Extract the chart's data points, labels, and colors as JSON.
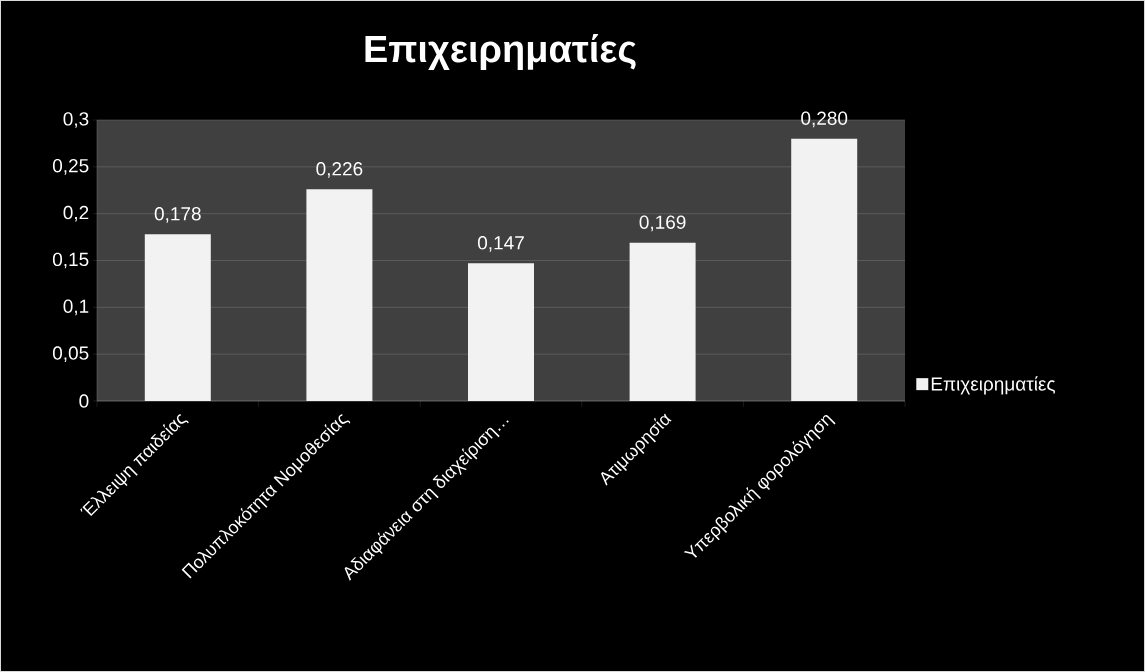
{
  "chart_data": {
    "type": "bar",
    "title": "Επιχειρηματίες",
    "categories": [
      "Έλλειψη παιδείας",
      "Πολυπλοκότητα Νομοθεσίας",
      "Αδιαφάνεια στη διαχείριση…",
      "Ατιμωρησία",
      "Υπερβολική φορολόγηση"
    ],
    "series": [
      {
        "name": "Επιχειρηματίες",
        "color": "#f2f2f2",
        "values": [
          0.178,
          0.226,
          0.147,
          0.169,
          0.28
        ],
        "value_labels": [
          "0,178",
          "0,226",
          "0,147",
          "0,169",
          "0,280"
        ]
      }
    ],
    "ylim": [
      0,
      0.3
    ],
    "yticks": [
      {
        "value": 0,
        "label": "0"
      },
      {
        "value": 0.05,
        "label": "0,05"
      },
      {
        "value": 0.1,
        "label": "0,1"
      },
      {
        "value": 0.15,
        "label": "0,15"
      },
      {
        "value": 0.2,
        "label": "0,2"
      },
      {
        "value": 0.25,
        "label": "0,25"
      },
      {
        "value": 0.3,
        "label": "0,3"
      }
    ],
    "grid": "y",
    "legend": "right"
  }
}
